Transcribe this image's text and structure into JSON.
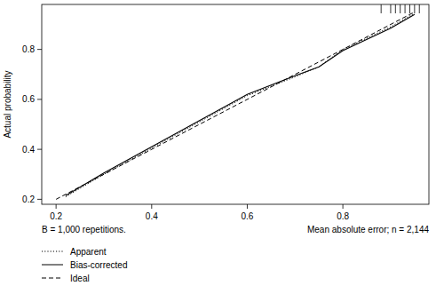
{
  "chart_data": {
    "type": "line",
    "y_label": "Actual probability",
    "annotations": [
      "B = 1,000 repetitions.",
      "Mean absolute error; n = 2,144"
    ],
    "xlim": [
      0.17,
      0.98
    ],
    "ylim": [
      0.18,
      0.98
    ],
    "xticks": [
      0.2,
      0.4,
      0.6,
      0.8
    ],
    "yticks": [
      0.2,
      0.4,
      0.6,
      0.8
    ],
    "legend": "bottom-left",
    "grid": false,
    "rug": [
      0.88,
      0.9,
      0.91,
      0.92,
      0.93,
      0.94,
      0.95,
      0.96
    ],
    "series": [
      {
        "name": "Apparent",
        "color": "#000000",
        "line_style": "dotted",
        "x": [
          0.22,
          0.3,
          0.4,
          0.5,
          0.6,
          0.7,
          0.75,
          0.8,
          0.9,
          0.95
        ],
        "values": [
          0.21,
          0.3,
          0.405,
          0.51,
          0.615,
          0.69,
          0.73,
          0.8,
          0.89,
          0.945
        ]
      },
      {
        "name": "Bias-corrected",
        "color": "#000000",
        "line_style": "solid",
        "x": [
          0.22,
          0.3,
          0.4,
          0.5,
          0.6,
          0.7,
          0.75,
          0.8,
          0.9,
          0.95
        ],
        "values": [
          0.215,
          0.305,
          0.41,
          0.515,
          0.62,
          0.695,
          0.73,
          0.795,
          0.885,
          0.94
        ]
      },
      {
        "name": "Ideal",
        "color": "#000000",
        "line_style": "dashed",
        "x": [
          0.2,
          0.95
        ],
        "values": [
          0.2,
          0.95
        ]
      }
    ]
  }
}
